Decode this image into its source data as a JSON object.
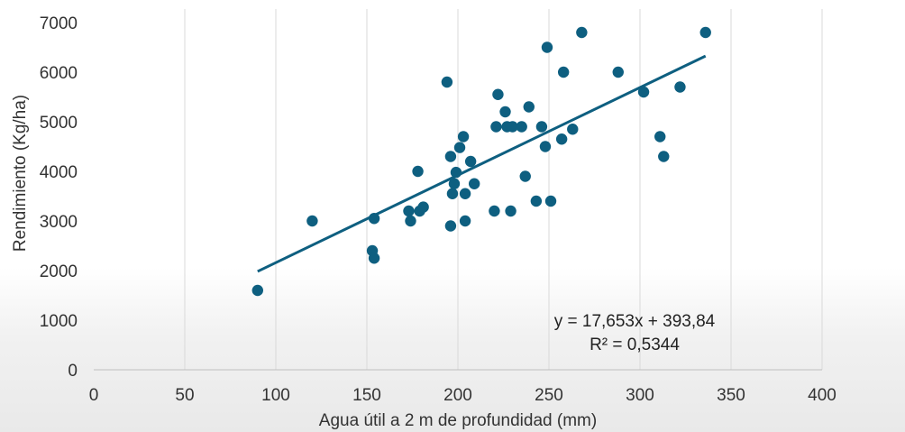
{
  "chart_data": {
    "type": "scatter",
    "title": "",
    "xlabel": "Agua útil a 2 m de profundidad (mm)",
    "ylabel": "Rendimiento (Kg/ha)",
    "xlim": [
      0,
      400
    ],
    "ylim": [
      0,
      7000
    ],
    "x_ticks": [
      "0",
      "50",
      "100",
      "150",
      "200",
      "250",
      "300",
      "350",
      "400"
    ],
    "y_ticks": [
      "0",
      "1000",
      "2000",
      "3000",
      "4000",
      "5000",
      "6000",
      "7000"
    ],
    "grid": "vertical",
    "colors": {
      "points": "#0e5f80",
      "trendline": "#0e5f80"
    },
    "points": [
      [
        90,
        1600
      ],
      [
        120,
        3000
      ],
      [
        153,
        2400
      ],
      [
        154,
        3050
      ],
      [
        154,
        2250
      ],
      [
        173,
        3200
      ],
      [
        174,
        3000
      ],
      [
        178,
        4000
      ],
      [
        179,
        3200
      ],
      [
        181,
        3280
      ],
      [
        194,
        5800
      ],
      [
        196,
        2900
      ],
      [
        196,
        4300
      ],
      [
        197,
        3550
      ],
      [
        198,
        3750
      ],
      [
        199,
        3980
      ],
      [
        201,
        4480
      ],
      [
        203,
        4700
      ],
      [
        204,
        3000
      ],
      [
        204,
        3550
      ],
      [
        207,
        4200
      ],
      [
        209,
        3750
      ],
      [
        220,
        3200
      ],
      [
        221,
        4900
      ],
      [
        222,
        5550
      ],
      [
        226,
        5200
      ],
      [
        227,
        4900
      ],
      [
        229,
        3200
      ],
      [
        230,
        4900
      ],
      [
        235,
        4900
      ],
      [
        237,
        3900
      ],
      [
        239,
        5300
      ],
      [
        243,
        3400
      ],
      [
        246,
        4900
      ],
      [
        248,
        4500
      ],
      [
        249,
        6500
      ],
      [
        251,
        3400
      ],
      [
        257,
        4650
      ],
      [
        258,
        6000
      ],
      [
        263,
        4850
      ],
      [
        268,
        6800
      ],
      [
        288,
        6000
      ],
      [
        302,
        5600
      ],
      [
        311,
        4700
      ],
      [
        313,
        4300
      ],
      [
        322,
        5700
      ],
      [
        336,
        6800
      ]
    ],
    "trendline": {
      "slope": 17.653,
      "intercept": 393.84,
      "x_range": [
        90,
        336
      ],
      "equation": "y = 17,653x + 393,84",
      "r2": "R² = 0,5344"
    }
  }
}
